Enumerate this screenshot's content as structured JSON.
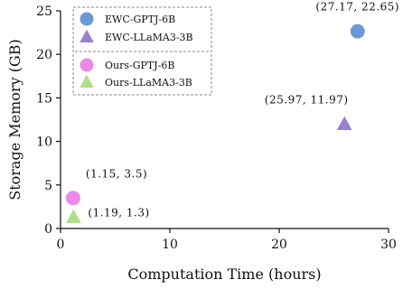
{
  "chart_data": {
    "type": "scatter",
    "xlabel": "Computation Time (hours)",
    "ylabel": "Storage Memory (GB)",
    "xlim": [
      0,
      30
    ],
    "ylim": [
      0,
      25
    ],
    "xticks": [
      0,
      10,
      20,
      30
    ],
    "yticks": [
      0,
      5,
      10,
      15,
      20,
      25
    ],
    "grid": false,
    "legend_position": "top-left",
    "series": [
      {
        "name": "EWC-GPTJ-6B",
        "marker": "circle",
        "color": "#6a99d6",
        "points": [
          {
            "x": 27.17,
            "y": 22.65,
            "label": "(27.17,  22.65)"
          }
        ]
      },
      {
        "name": "EWC-LLaMA3-3B",
        "marker": "triangle",
        "color": "#9b7fd1",
        "points": [
          {
            "x": 25.97,
            "y": 11.97,
            "label": "(25.97,  11.97)"
          }
        ]
      },
      {
        "name": "Ours-GPTJ-6B",
        "marker": "circle",
        "color": "#ee88e8",
        "points": [
          {
            "x": 1.15,
            "y": 3.5,
            "label": "(1.15,  3.5)"
          }
        ]
      },
      {
        "name": "Ours-LLaMA3-3B",
        "marker": "triangle",
        "color": "#aede8a",
        "points": [
          {
            "x": 1.19,
            "y": 1.3,
            "label": "(1.19,  1.3)"
          }
        ]
      }
    ]
  }
}
